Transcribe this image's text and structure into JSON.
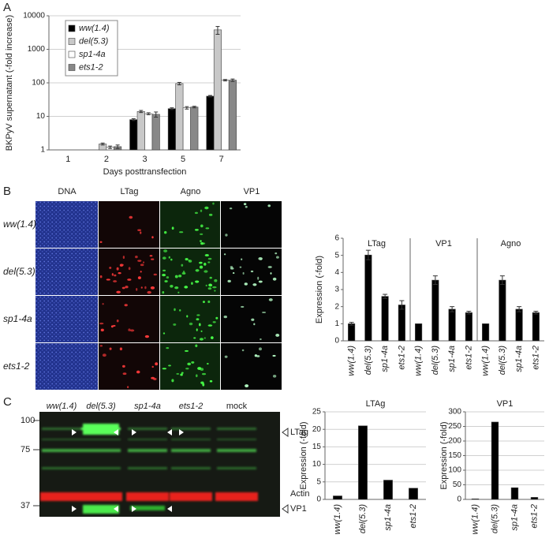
{
  "panels": [
    "A",
    "B",
    "C"
  ],
  "chart_data": [
    {
      "type": "bar",
      "ylabel": "BKPyV supernatant (-fold increase)",
      "xlabel": "Days posttransfection",
      "categories": [
        "1",
        "2",
        "3",
        "5",
        "7"
      ],
      "log_scale": true,
      "ylim": [
        1,
        10000
      ],
      "yticks": [
        1,
        10,
        100,
        1000,
        10000
      ],
      "grid": true,
      "legend": "top-left",
      "series": [
        {
          "name": "ww(1.4)",
          "color": "#000000",
          "values": [
            1,
            1,
            8,
            17,
            40
          ],
          "errors": [
            0,
            0,
            0.5,
            1,
            2
          ]
        },
        {
          "name": "del(5.3)",
          "color": "#c8c8c8",
          "values": [
            1,
            1.5,
            14,
            95,
            3800
          ],
          "errors": [
            0,
            0.1,
            1,
            8,
            1000
          ]
        },
        {
          "name": "sp1-4a",
          "color": "#ffffff",
          "values": [
            1,
            1.2,
            12,
            18,
            120
          ],
          "errors": [
            0,
            0.1,
            0.8,
            1.5,
            6
          ]
        },
        {
          "name": "ets1-2",
          "color": "#888888",
          "values": [
            1,
            1.25,
            11.5,
            19,
            120
          ],
          "errors": [
            0,
            0.15,
            2,
            1,
            10
          ]
        }
      ]
    },
    {
      "type": "bar",
      "ylabel": "Expression (-fold)",
      "categories": [
        "ww(1.4)",
        "del(5.3)",
        "sp1-4a",
        "ets1-2"
      ],
      "ylim": [
        0,
        6
      ],
      "yticks": [
        0,
        1,
        2,
        3,
        4,
        5,
        6
      ],
      "grid": false,
      "color": "#000000",
      "series": [
        {
          "name": "LTag",
          "values": [
            1,
            5.02,
            2.6,
            2.1
          ],
          "errors": [
            0.08,
            0.28,
            0.12,
            0.25
          ]
        },
        {
          "name": "VP1",
          "values": [
            1,
            3.55,
            1.85,
            1.65
          ],
          "errors": [
            0,
            0.25,
            0.15,
            0.08
          ]
        },
        {
          "name": "Agno",
          "values": [
            1,
            3.55,
            1.85,
            1.65
          ],
          "errors": [
            0,
            0.25,
            0.15,
            0.08
          ]
        }
      ]
    },
    {
      "type": "bar",
      "title": "LTAg",
      "ylabel": "Expression (-fold)",
      "categories": [
        "ww(1.4)",
        "del(5.3)",
        "sp1-4a",
        "ets1-2"
      ],
      "values": [
        1,
        21,
        5.5,
        3.2
      ],
      "ylim": [
        0,
        25
      ],
      "yticks": [
        0,
        5,
        10,
        15,
        20,
        25
      ],
      "grid": true,
      "color": "#000000"
    },
    {
      "type": "bar",
      "title": "VP1",
      "ylabel": "Expression (-fold)",
      "categories": [
        "ww(1.4)",
        "del(5.3)",
        "sp1-4a",
        "ets1-2"
      ],
      "values": [
        2,
        265,
        40,
        7
      ],
      "ylim": [
        0,
        300
      ],
      "yticks": [
        0,
        50,
        100,
        150,
        200,
        250,
        300
      ],
      "grid": true,
      "color": "#000000"
    }
  ],
  "microscopy": {
    "columns": [
      "DNA",
      "LTag",
      "Agno",
      "VP1"
    ],
    "rows": [
      "ww(1.4)",
      "del(5.3)",
      "sp1-4a",
      "ets1-2"
    ]
  },
  "blot": {
    "lanes": [
      "ww(1.4)",
      "del(5.3)",
      "sp1-4a",
      "ets1-2",
      "mock"
    ],
    "markers": [
      "100",
      "75",
      "37"
    ],
    "bands": [
      "LTag",
      "Actin",
      "VP1"
    ]
  }
}
